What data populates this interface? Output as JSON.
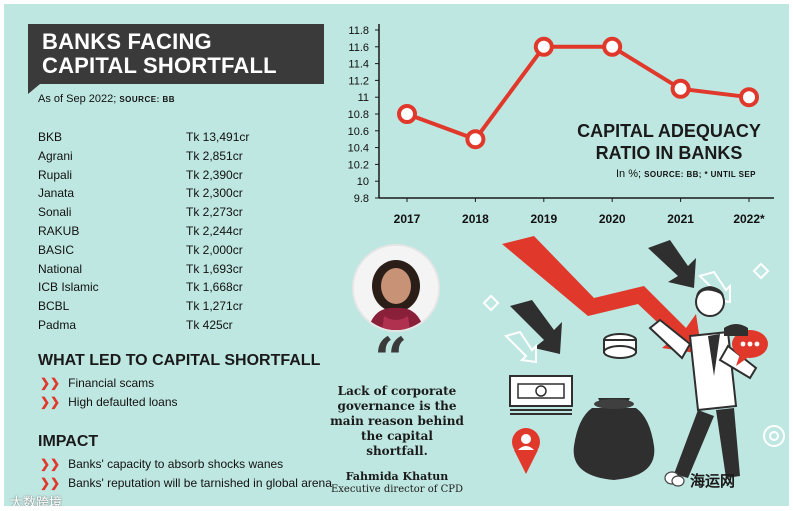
{
  "header": {
    "title": "BANKS FACING CAPITAL SHORTFALL",
    "as_of": "As of Sep 2022;",
    "source": "SOURCE: BB"
  },
  "shortfall_table": [
    {
      "bank": "BKB",
      "amount": "Tk 13,491cr"
    },
    {
      "bank": "Agrani",
      "amount": "Tk 2,851cr"
    },
    {
      "bank": "Rupali",
      "amount": "Tk 2,390cr"
    },
    {
      "bank": "Janata",
      "amount": "Tk 2,300cr"
    },
    {
      "bank": "Sonali",
      "amount": "Tk 2,273cr"
    },
    {
      "bank": "RAKUB",
      "amount": "Tk 2,244cr"
    },
    {
      "bank": "BASIC",
      "amount": "Tk 2,000cr"
    },
    {
      "bank": "National",
      "amount": "Tk 1,693cr"
    },
    {
      "bank": "ICB Islamic",
      "amount": "Tk 1,668cr"
    },
    {
      "bank": "BCBL",
      "amount": "Tk 1,271cr"
    },
    {
      "bank": "Padma",
      "amount": "Tk 425cr"
    }
  ],
  "causes": {
    "heading": "WHAT LED TO CAPITAL SHORTFALL",
    "items": [
      "Financial scams",
      "High defaulted loans"
    ]
  },
  "impact": {
    "heading": "IMPACT",
    "items": [
      "Banks' capacity to absorb shocks wanes",
      "Banks' reputation will be tarnished in global arena"
    ]
  },
  "chart_data": {
    "type": "line",
    "title": "CAPITAL ADEQUACY RATIO IN BANKS",
    "subtitle": "In %;",
    "source": "SOURCE: BB; * UNTIL SEP",
    "categories": [
      "2017",
      "2018",
      "2019",
      "2020",
      "2021",
      "2022*"
    ],
    "values": [
      10.8,
      10.5,
      11.6,
      11.6,
      11.1,
      11.0
    ],
    "y_ticks": [
      "9.8",
      "10",
      "10.2",
      "10.4",
      "10.6",
      "10.8",
      "11",
      "11.2",
      "11.4",
      "11.6",
      "11.8"
    ],
    "ylim": [
      9.8,
      11.8
    ],
    "grid": false,
    "line_color": "#e0392b",
    "marker_fill": "#ffffff"
  },
  "quote": {
    "text": "Lack of corporate governance is the main reason behind the capital shortfall.",
    "name": "Fahmida Khatun",
    "role": "Executive director of CPD"
  },
  "watermarks": {
    "left": "大数跨境",
    "right": "海运网"
  },
  "colors": {
    "background": "#bfe7e1",
    "title_box": "#3a3a3a",
    "accent": "#e0392b"
  }
}
